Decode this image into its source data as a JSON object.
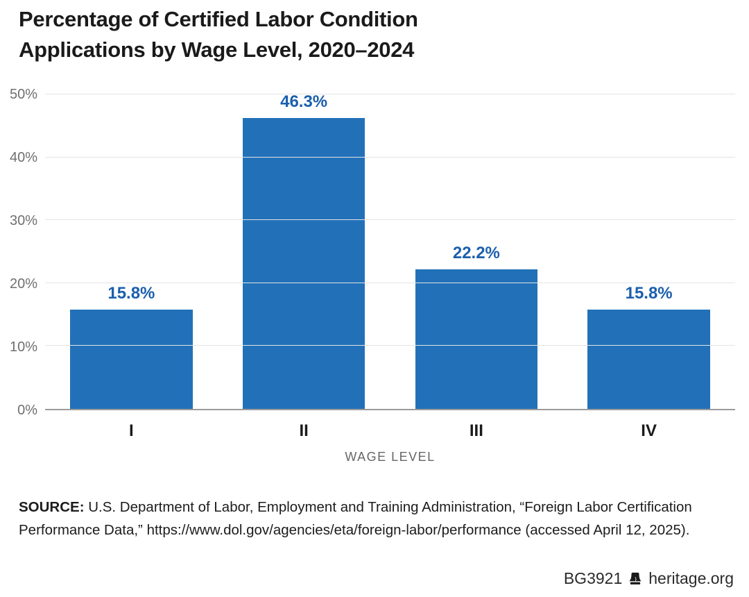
{
  "header": {
    "title_line1": "Percentage of Certified Labor Condition",
    "title_line2": "Applications by Wage Level, 2020–2024"
  },
  "chart_data": {
    "type": "bar",
    "title": "Percentage of Certified Labor Condition Applications by Wage Level, 2020–2024",
    "categories": [
      "I",
      "II",
      "III",
      "IV"
    ],
    "values": [
      15.8,
      46.3,
      22.2,
      15.8
    ],
    "value_labels": [
      "15.8%",
      "46.3%",
      "22.2%",
      "15.8%"
    ],
    "xlabel": "WAGE LEVEL",
    "ylabel": "",
    "ylim": [
      0,
      50
    ],
    "yticks": [
      0,
      10,
      20,
      30,
      40,
      50
    ],
    "ytick_labels": [
      "0%",
      "10%",
      "20%",
      "30%",
      "40%",
      "50%"
    ],
    "grid": true,
    "legend": "none",
    "bar_color": "#2271b8",
    "value_label_color": "#1b5fad"
  },
  "source": {
    "label": "SOURCE:",
    "text": " U.S. Department of Labor, Employment and Training Administration, “Foreign Labor Certification Performance Data,” https://www.dol.gov/agencies/eta/foreign-labor/performance (accessed April 12, 2025)."
  },
  "footer": {
    "doc_id": "BG3921",
    "icon": "liberty-bell-icon",
    "site": "heritage.org"
  }
}
